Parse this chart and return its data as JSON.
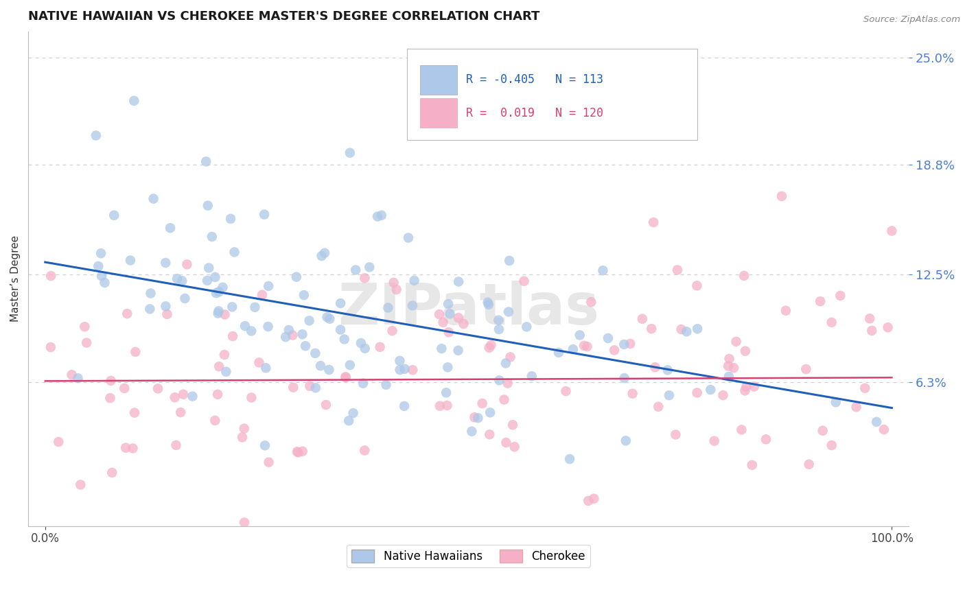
{
  "title": "NATIVE HAWAIIAN VS CHEROKEE MASTER'S DEGREE CORRELATION CHART",
  "source": "Source: ZipAtlas.com",
  "ylabel": "Master’s Degree",
  "xlim": [
    -2.0,
    102.0
  ],
  "ylim": [
    -2.0,
    26.5
  ],
  "ytick_vals": [
    6.3,
    12.5,
    18.8,
    25.0
  ],
  "ytick_labels": [
    "6.3%",
    "12.5%",
    "18.8%",
    "25.0%"
  ],
  "xtick_vals": [
    0.0,
    100.0
  ],
  "xtick_labels": [
    "0.0%",
    "100.0%"
  ],
  "blue_R": -0.405,
  "blue_N": 113,
  "pink_R": 0.019,
  "pink_N": 120,
  "blue_color": "#adc8e8",
  "pink_color": "#f5b0c8",
  "blue_line_color": "#1f5fba",
  "pink_line_color": "#d44070",
  "legend_blue_label": "Native Hawaiians",
  "legend_pink_label": "Cherokee",
  "watermark_text": "ZIPatlas",
  "blue_trend_x0": 0.0,
  "blue_trend_y0": 13.2,
  "blue_trend_x1": 100.0,
  "blue_trend_y1": 4.8,
  "pink_trend_x0": 0.0,
  "pink_trend_y0": 6.35,
  "pink_trend_x1": 100.0,
  "pink_trend_y1": 6.55,
  "background_color": "#ffffff",
  "grid_color": "#d0d0d0",
  "title_fontsize": 13,
  "tick_color": "#4a7fd4",
  "seed_blue": 42,
  "seed_pink": 99
}
